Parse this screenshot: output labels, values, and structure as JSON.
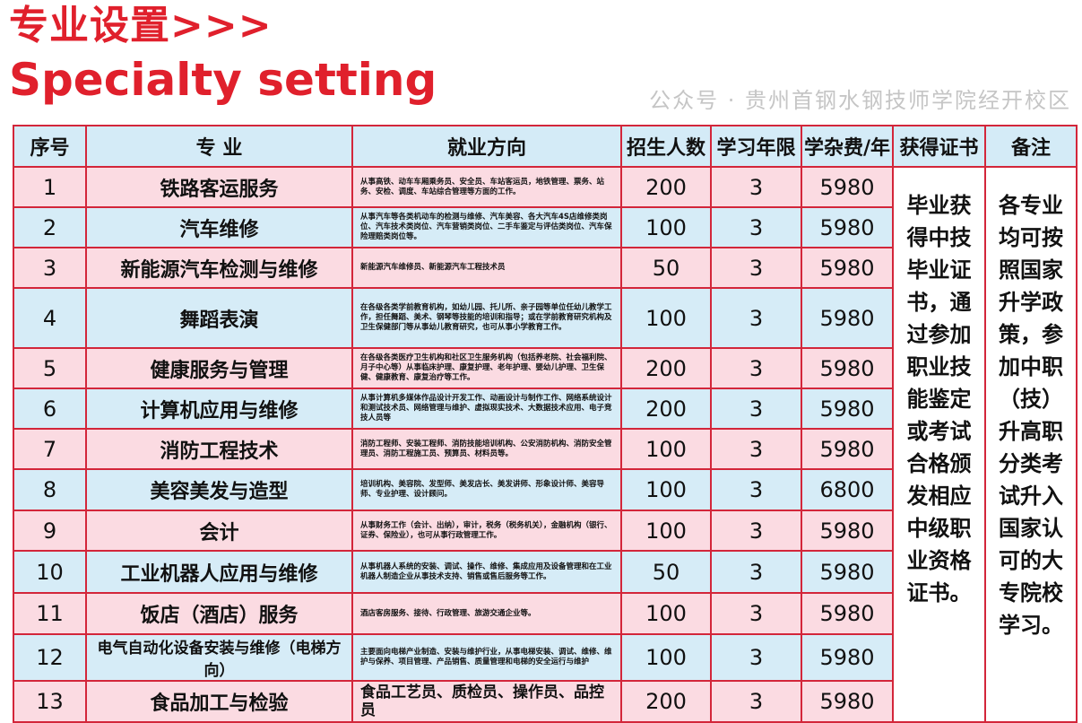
{
  "title_cn": "专业设置>>>",
  "title_en": "Specialty setting",
  "headers": [
    "序号",
    "专 业",
    "就业方向",
    "招生人数",
    "学习年限",
    "学杂费/年",
    "获得证书",
    "备注"
  ],
  "rows": [
    {
      "seq": "1",
      "major": "铁路客运服务",
      "job": "从事高铁、动车车厢乘务员、安全员、车站客运员，地铁管理、票务、站务、安检、调度、车站综合管理等方面的工作。",
      "enroll": "200",
      "years": "3",
      "fee": "5980"
    },
    {
      "seq": "2",
      "major": "汽车维修",
      "job": "从事汽车等各类机动车的检测与维修、汽车美容、各大汽车4S店维修类岗位、汽车技术类岗位、汽车营销类岗位、二手车鉴定与评估类岗位、汽车保险理赔类岗位等。",
      "enroll": "100",
      "years": "3",
      "fee": "5980"
    },
    {
      "seq": "3",
      "major": "新能源汽车检测与维修",
      "job": "新能源汽车维修员、新能源汽车工程技术员",
      "enroll": "50",
      "years": "3",
      "fee": "5980"
    },
    {
      "seq": "4",
      "major": "舞蹈表演",
      "job": "在各级各类学前教育机构，如幼儿园、托儿所、亲子园等单位任幼儿教学工作，担任舞蹈、美术、钢琴等技能的培训和指导；或在学前教育研究机构及卫生保健部门等从事幼儿教育研究，也可从事小学教育工作。",
      "enroll": "100",
      "years": "3",
      "fee": "5980"
    },
    {
      "seq": "5",
      "major": "健康服务与管理",
      "job": "在各级各类医疗卫生机构和社区卫生服务机构（包括养老院、社会福利院、月子中心等）从事临床护理、康复护理、老年护理、婴幼儿护理、卫生保健、健康教育、康复治疗等工作。",
      "enroll": "200",
      "years": "3",
      "fee": "5980"
    },
    {
      "seq": "6",
      "major": "计算机应用与维修",
      "job": "从事计算机多媒体作品设计开发工作、动画设计与制作工作、网络系统设计和测试技术员、网络管理与维护、虚拟现实技术、大数据技术应用、电子竞技人员等",
      "enroll": "200",
      "years": "3",
      "fee": "5980"
    },
    {
      "seq": "7",
      "major": "消防工程技术",
      "job": "消防工程师、安装工程师、消防技能培训机构、公安消防机构、消防安全管理员、消防工程施工员、预算员、材料员等。",
      "enroll": "100",
      "years": "3",
      "fee": "5980"
    },
    {
      "seq": "8",
      "major": "美容美发与造型",
      "job": "培训机构、美容院、发型师、美发店长、美发讲师、形象设计师、美容导师、专业护理、设计顾问。",
      "enroll": "100",
      "years": "3",
      "fee": "6800"
    },
    {
      "seq": "9",
      "major": "会计",
      "job": "从事财务工作（会计、出纳），审计，税务（税务机关），金融机构（银行、证券、保险业），也可从事行政管理工作。",
      "enroll": "100",
      "years": "3",
      "fee": "5980"
    },
    {
      "seq": "10",
      "major": "工业机器人应用与维修",
      "job": "从事机器人系统的安装、调试、操作、维修、集成应用及设备管理和在工业机器人制造企业从事技术支持、销售或售后服务等工作。",
      "enroll": "50",
      "years": "3",
      "fee": "5980"
    },
    {
      "seq": "11",
      "major": "饭店（酒店）服务",
      "job": "酒店客房服务、接待、行政管理、旅游交通企业等。",
      "enroll": "100",
      "years": "3",
      "fee": "5980"
    },
    {
      "seq": "12",
      "major": "电气自动化设备安装与维修（电梯方向）",
      "job": "主要面向电梯产业制造、安装与维护行业，从事电梯安装、调试、维修、维护与保养、项目管理、产品销售、质量管理和电梯的安全运行与维护",
      "enroll": "100",
      "years": "3",
      "fee": "5980"
    },
    {
      "seq": "13",
      "major": "食品加工与检验",
      "job": "食品工艺员、质检员、操作员、品控员",
      "enroll": "200",
      "years": "3",
      "fee": "5980"
    }
  ],
  "certificate": "毕业获得中技毕业证书，通过参加职业技能鉴定或考试合格颁发相应中级职业资格证书。",
  "remark": "各专业均可按照国家升学政策，参加中职（技）升高职分类考试升入国家认可的大专院校学习。",
  "watermark": "公众号 · 贵州首钢水钢技师学院经开校区",
  "colors": {
    "title": "#e0202c",
    "border": "#d3263a",
    "row_pink": "#fbdbe2",
    "row_blue": "#d6ecf7"
  }
}
